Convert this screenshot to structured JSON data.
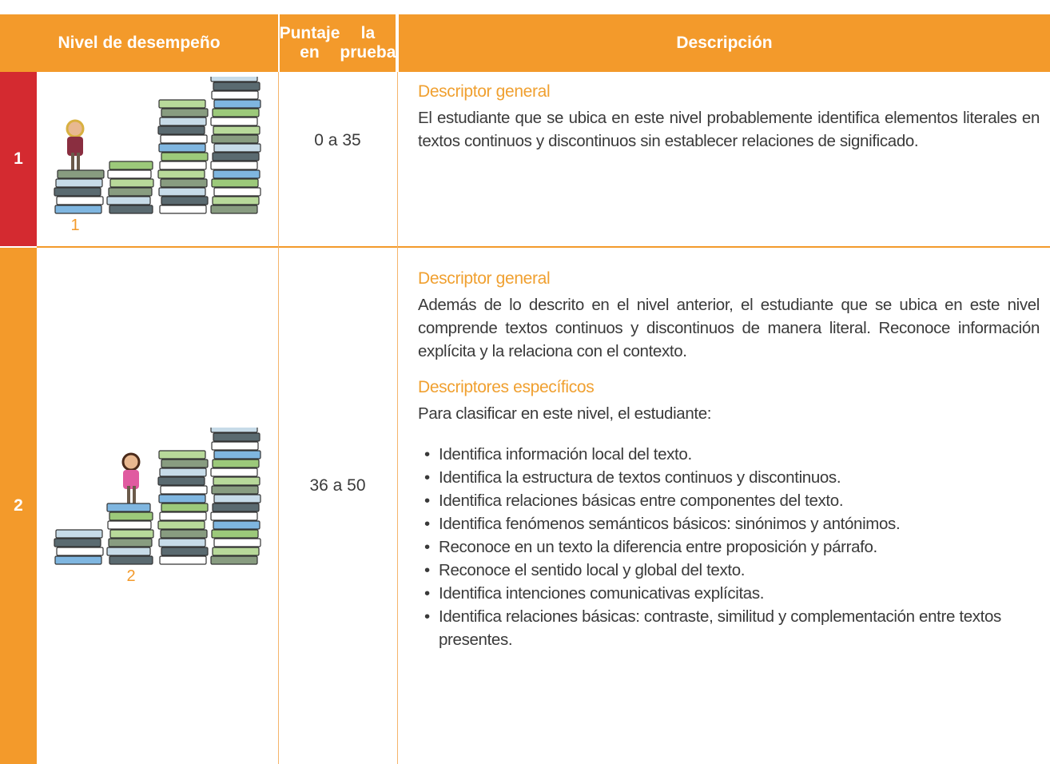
{
  "header": {
    "level": "Nivel de desempeño",
    "score": [
      "Puntaje en",
      "la prueba"
    ],
    "description": "Descripción"
  },
  "rows": [
    {
      "level": "1",
      "figure_label": "1",
      "score": "0 a 35",
      "sections": [
        {
          "heading": "Descriptor general",
          "text": "El estudiante que se ubica en este nivel probablemente identifica elementos literales en textos continuos y discontinuos sin establecer relaciones de significado."
        }
      ]
    },
    {
      "level": "2",
      "figure_label": "2",
      "score": "36 a 50",
      "sections": [
        {
          "heading": "Descriptor general",
          "text": "Además de lo descrito en el nivel anterior, el estudiante que se ubica en este nivel comprende textos continuos y discontinuos de manera literal. Reconoce información explícita y la relaciona con el contexto."
        },
        {
          "heading": "Descriptores específicos",
          "text": "Para clasificar en este nivel, el estudiante:",
          "items": [
            "Identifica información local del texto.",
            "Identifica la estructura de textos continuos y discontinuos.",
            "Identifica relaciones básicas entre componentes del texto.",
            "Identifica fenómenos semánticos básicos: sinónimos y antónimos.",
            "Reconoce en un texto la diferencia entre proposición y párrafo.",
            "Reconoce el sentido local y global del texto.",
            "Identifica intenciones comunicativas explícitas.",
            "Identifica relaciones básicas: contraste, similitud y complementación entre textos presentes."
          ]
        }
      ]
    }
  ]
}
